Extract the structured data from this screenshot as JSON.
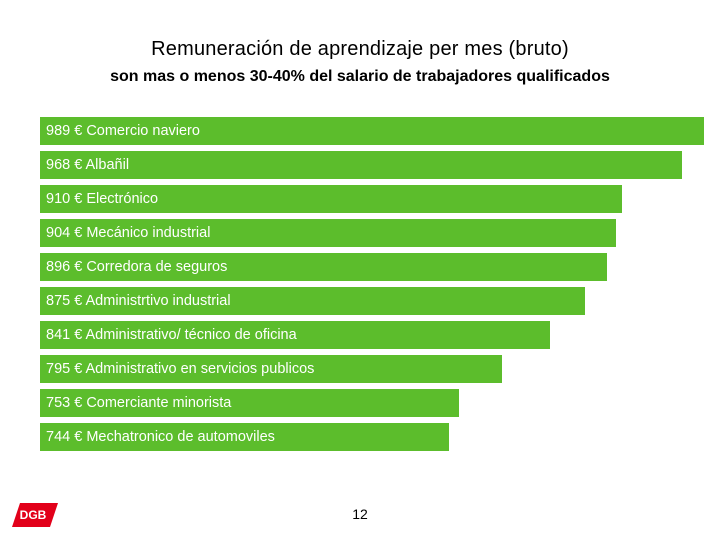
{
  "slide": {
    "title": "Remuneración de aprendizaje per mes (bruto)",
    "subtitle": "son mas o menos 30-40% del salario de trabajadores qualificados",
    "page_number": "12",
    "logo_text": "DGB"
  },
  "colors": {
    "bar": "#5cbd2c",
    "label": "#ffffff",
    "logo": "#e2001a"
  },
  "chart_data": {
    "type": "bar",
    "orientation": "horizontal",
    "unit": "€",
    "categories": [
      "Comercio naviero",
      "Albañil",
      "Electrónico",
      "Mecánico industrial",
      "Corredora de seguros",
      "Administrtivo industrial",
      "Administrativo/ técnico de oficina",
      "Administrativo en servicios publicos",
      "Comerciante minorista",
      "Mechatronico de automoviles"
    ],
    "values": [
      989,
      968,
      910,
      904,
      896,
      875,
      841,
      795,
      753,
      744
    ],
    "labels": [
      "989 € Comercio naviero",
      "968 € Albañil",
      "910 € Electrónico",
      "904 € Mecánico industrial",
      "896 € Corredora de seguros",
      "875 € Administrtivo industrial",
      "841 € Administrativo/ técnico de oficina",
      "795 € Administrativo en servicios publicos",
      "753 € Comerciante minorista",
      "744 € Mechatronico de automoviles"
    ],
    "title": "Remuneración de aprendizaje per mes (bruto)",
    "xlabel": "",
    "ylabel": "",
    "grid": false,
    "legend": "none"
  }
}
